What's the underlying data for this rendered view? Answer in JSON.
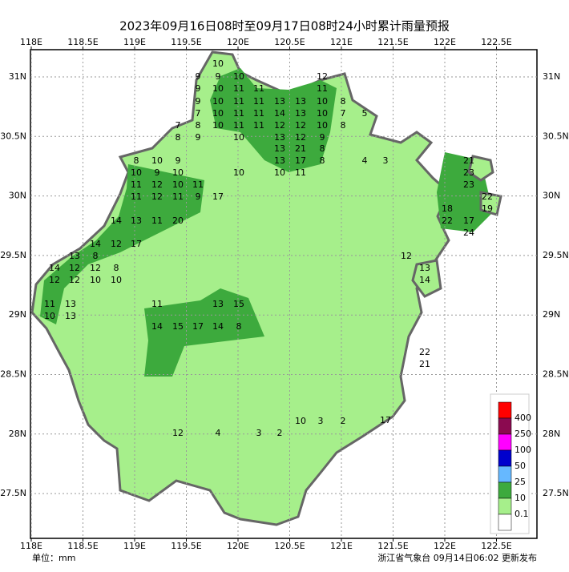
{
  "title": "2023年09月16日08时至09月17日08时24小时累计雨量预报",
  "lon_ticks": [
    {
      "value": 118,
      "label": "118E"
    },
    {
      "value": 118.5,
      "label": "118.5E"
    },
    {
      "value": 119,
      "label": "119E"
    },
    {
      "value": 119.5,
      "label": "119.5E"
    },
    {
      "value": 120,
      "label": "120E"
    },
    {
      "value": 120.5,
      "label": "120.5E"
    },
    {
      "value": 121,
      "label": "121E"
    },
    {
      "value": 121.5,
      "label": "121.5E"
    },
    {
      "value": 122,
      "label": "122E"
    },
    {
      "value": 122.5,
      "label": "122.5E"
    }
  ],
  "lat_ticks": [
    {
      "value": 31,
      "label": "31N"
    },
    {
      "value": 30.5,
      "label": "30.5N"
    },
    {
      "value": 30,
      "label": "30N"
    },
    {
      "value": 29.5,
      "label": "29.5N"
    },
    {
      "value": 29,
      "label": "29N"
    },
    {
      "value": 28.5,
      "label": "28.5N"
    },
    {
      "value": 28,
      "label": "28N"
    },
    {
      "value": 27.5,
      "label": "27.5N"
    }
  ],
  "legend": {
    "levels": [
      400,
      250,
      100,
      50,
      25,
      10,
      0.1
    ],
    "colors": [
      "#ff0000",
      "#8b0a50",
      "#ff00ff",
      "#0000cd",
      "#66b8ff",
      "#3daa3d",
      "#a6ef8b",
      "#ffffff"
    ]
  },
  "station_values": [
    10,
    9,
    9,
    10,
    12,
    9,
    10,
    11,
    11,
    11,
    9,
    10,
    11,
    11,
    13,
    13,
    10,
    8,
    7,
    10,
    11,
    11,
    14,
    13,
    10,
    7,
    5,
    7,
    8,
    10,
    11,
    11,
    12,
    12,
    10,
    8,
    8,
    9,
    10,
    13,
    12,
    9,
    13,
    21,
    8,
    8,
    10,
    9,
    13,
    17,
    8,
    4,
    3,
    10,
    9,
    10,
    10,
    10,
    11,
    11,
    12,
    10,
    11,
    11,
    12,
    11,
    9,
    17,
    14,
    13,
    11,
    20,
    14,
    12,
    17,
    13,
    8,
    14,
    12,
    12,
    8,
    12,
    12,
    10,
    10,
    11,
    13,
    10,
    13,
    14,
    15,
    17,
    14,
    8,
    11,
    13,
    15,
    21,
    23,
    23,
    22,
    19,
    18,
    22,
    17,
    24,
    22,
    21,
    17,
    12,
    13,
    14,
    12,
    4,
    3,
    2,
    10,
    3,
    2
  ],
  "unit": "单位：mm",
  "footer": "浙江省气象台 09月14日06:02 更新发布"
}
